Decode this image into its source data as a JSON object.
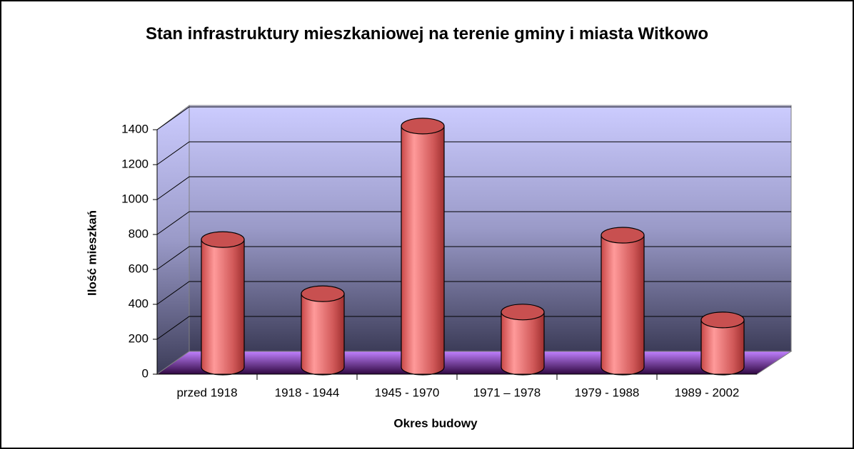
{
  "chart_data": {
    "type": "bar3d",
    "title": "Stan infrastruktury mieszkaniowej na terenie gminy i miasta Witkowo",
    "x_label": "Okres budowy",
    "y_label": "Ilość mieszkań",
    "categories": [
      "przed 1918",
      "1918 - 1944",
      "1945 - 1970",
      "1971 – 1978",
      "1979 - 1988",
      "1989 - 2002"
    ],
    "values": [
      730,
      420,
      1380,
      315,
      755,
      270
    ],
    "color": "#e06060",
    "ylim": [
      0,
      1400
    ],
    "yticks": [
      0,
      200,
      400,
      600,
      800,
      1000,
      1200,
      1400
    ],
    "grid": true
  }
}
